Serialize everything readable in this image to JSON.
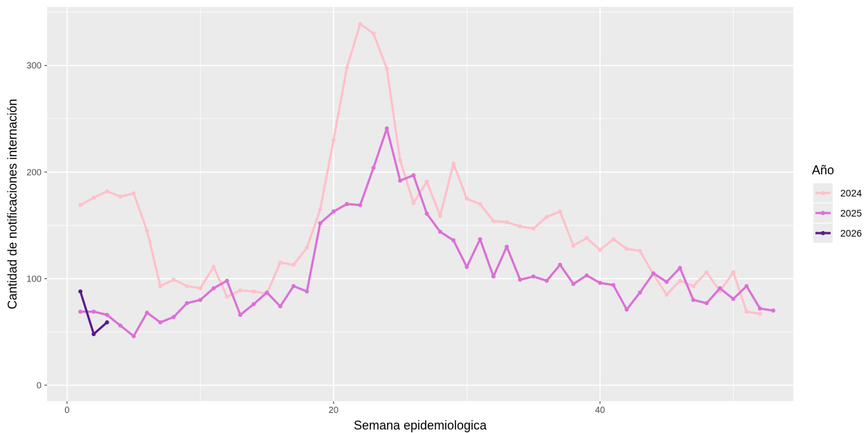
{
  "chart_data": {
    "type": "line",
    "title": "",
    "xlabel": "Semana epidemiologica",
    "ylabel": "Cantidad de notificaciones internación",
    "xlim": [
      -1.5,
      54.5
    ],
    "ylim": [
      -15,
      355
    ],
    "x_ticks": [
      0,
      20,
      40
    ],
    "y_ticks": [
      0,
      100,
      200,
      300
    ],
    "grid": true,
    "legend": {
      "title": "Año",
      "position": "right"
    },
    "series": [
      {
        "name": "2024",
        "color": "#FFC0CB",
        "x": [
          1,
          2,
          3,
          4,
          5,
          6,
          7,
          8,
          9,
          10,
          11,
          12,
          13,
          14,
          15,
          16,
          17,
          18,
          19,
          20,
          21,
          22,
          23,
          24,
          25,
          26,
          27,
          28,
          29,
          30,
          31,
          32,
          33,
          34,
          35,
          36,
          37,
          38,
          39,
          40,
          41,
          42,
          43,
          44,
          45,
          46,
          47,
          48,
          49,
          50,
          51,
          52
        ],
        "y": [
          169,
          176,
          182,
          177,
          180,
          145,
          93,
          99,
          93,
          91,
          111,
          83,
          89,
          88,
          86,
          115,
          113,
          129,
          165,
          230,
          298,
          339,
          330,
          297,
          211,
          171,
          191,
          159,
          208,
          175,
          170,
          154,
          153,
          149,
          147,
          158,
          163,
          131,
          138,
          127,
          137,
          128,
          126,
          104,
          85,
          98,
          93,
          106,
          88,
          106,
          69,
          67
        ]
      },
      {
        "name": "2025",
        "color": "#DA70D6",
        "x": [
          1,
          2,
          3,
          4,
          5,
          6,
          7,
          8,
          9,
          10,
          11,
          12,
          13,
          14,
          15,
          16,
          17,
          18,
          19,
          20,
          21,
          22,
          23,
          24,
          25,
          26,
          27,
          28,
          29,
          30,
          31,
          32,
          33,
          34,
          35,
          36,
          37,
          38,
          39,
          40,
          41,
          42,
          43,
          44,
          45,
          46,
          47,
          48,
          49,
          50,
          51,
          52,
          53
        ],
        "y": [
          69,
          69,
          66,
          56,
          46,
          68,
          59,
          64,
          77,
          80,
          91,
          98,
          66,
          76,
          87,
          74,
          93,
          88,
          152,
          163,
          170,
          169,
          204,
          241,
          192,
          197,
          161,
          144,
          136,
          111,
          137,
          102,
          130,
          99,
          102,
          98,
          113,
          95,
          103,
          96,
          94,
          71,
          87,
          105,
          97,
          110,
          80,
          77,
          91,
          81,
          93,
          72,
          70
        ]
      },
      {
        "name": "2026",
        "color": "#5B1A8B",
        "x": [
          1,
          2,
          3
        ],
        "y": [
          88,
          48,
          59
        ]
      }
    ]
  }
}
